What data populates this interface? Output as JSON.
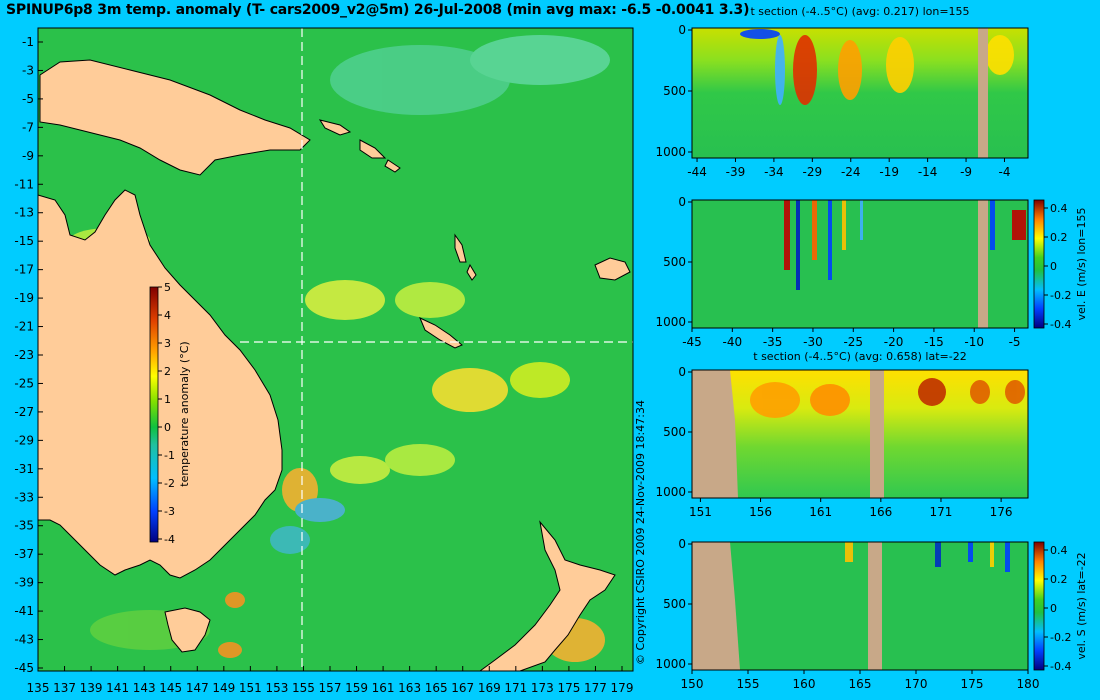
{
  "title": "SPINUP6p8 3m temp. anomaly (T- cars2009_v2@5m) 26-Jul-2008 (min avg max: -6.5 -0.0041 3.3)",
  "copyright": "© Copyright CSIRO 2009   24-Nov-2009 18:47:34",
  "map": {
    "lat_labels": [
      "-1",
      "-3",
      "-5",
      "-7",
      "-9",
      "-11",
      "-13",
      "-15",
      "-17",
      "-19",
      "-21",
      "-23",
      "-25",
      "-27",
      "-29",
      "-31",
      "-33",
      "-35",
      "-37",
      "-39",
      "-41",
      "-43",
      "-45"
    ],
    "lon_labels": [
      "135",
      "137",
      "139",
      "141",
      "143",
      "145",
      "147",
      "149",
      "151",
      "153",
      "155",
      "157",
      "159",
      "161",
      "163",
      "165",
      "167",
      "169",
      "171",
      "173",
      "175",
      "177",
      "179"
    ],
    "section_lon": 155,
    "section_lat": -22,
    "colorbar": {
      "label": "temperature anomaly (°C)",
      "ticks": [
        "5",
        "4",
        "3",
        "2",
        "1",
        "0",
        "-1",
        "-2",
        "-3",
        "-4"
      ]
    },
    "colors": {
      "land": "#ffcc99",
      "ocean": "#2bc14a"
    }
  },
  "panels": [
    {
      "title": "t section (-4..5°C) (avg: 0.217) lon=155",
      "x_ticks": [
        "-44",
        "-39",
        "-34",
        "-29",
        "-24",
        "-19",
        "-14",
        "-9",
        "-4"
      ],
      "y_ticks": [
        "0",
        "500",
        "1000"
      ],
      "colorbar": null
    },
    {
      "title": "",
      "x_ticks": [
        "-45",
        "-40",
        "-35",
        "-30",
        "-25",
        "-20",
        "-15",
        "-10",
        "-5"
      ],
      "y_ticks": [
        "0",
        "500",
        "1000"
      ],
      "colorbar": {
        "label": "vel. E (m/s) lon=155",
        "ticks": [
          "0.4",
          "0.2",
          "0",
          "-0.2",
          "-0.4"
        ]
      }
    },
    {
      "title": "t section (-4..5°C) (avg: 0.658) lat=-22",
      "x_ticks": [
        "151",
        "156",
        "161",
        "166",
        "171",
        "176"
      ],
      "y_ticks": [
        "0",
        "500",
        "1000"
      ],
      "colorbar": null
    },
    {
      "title": "",
      "x_ticks": [
        "150",
        "155",
        "160",
        "165",
        "170",
        "175",
        "180"
      ],
      "y_ticks": [
        "0",
        "500",
        "1000"
      ],
      "colorbar": {
        "label": "vel. S (m/s) lat=-22",
        "ticks": [
          "0.4",
          "0.2",
          "0",
          "-0.2",
          "-0.4"
        ]
      }
    }
  ]
}
